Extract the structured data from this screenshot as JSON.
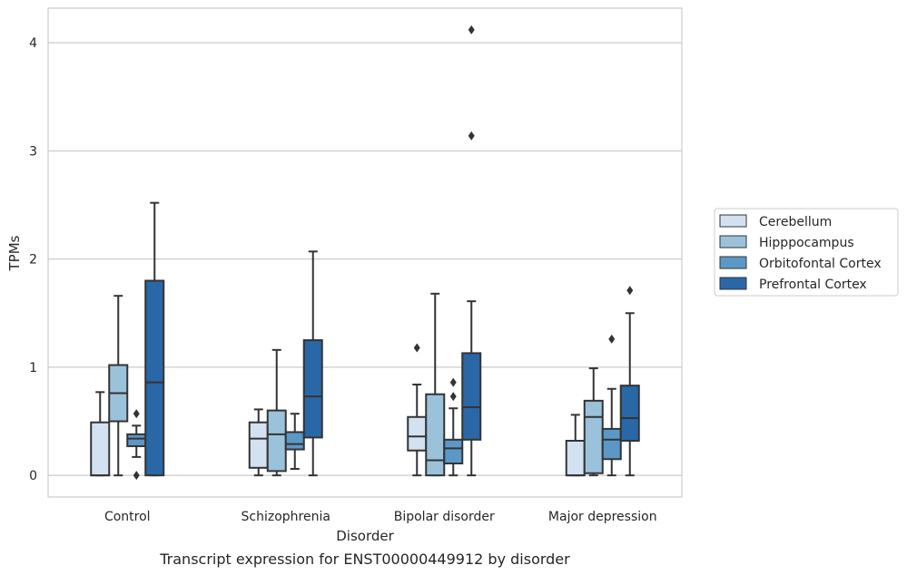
{
  "chart_data": {
    "type": "boxplot",
    "title": "",
    "caption": "Transcript expression for ENST00000449912 by disorder",
    "xlabel": "Disorder",
    "ylabel": "TPMs",
    "ylim": [
      -0.2,
      4.32
    ],
    "yticks": [
      0,
      1,
      2,
      3,
      4
    ],
    "grid": "horizontal",
    "legend_position": "right",
    "categories": [
      "Control",
      "Schizophrenia",
      "Bipolar disorder",
      "Major depression"
    ],
    "series": [
      {
        "name": "Cerebellum",
        "color": "#d3e2f1",
        "boxes": [
          {
            "whislo": 0.0,
            "q1": 0.0,
            "med": 0.0,
            "q3": 0.49,
            "whishi": 0.77,
            "fliers": []
          },
          {
            "whislo": 0.0,
            "q1": 0.07,
            "med": 0.34,
            "q3": 0.49,
            "whishi": 0.61,
            "fliers": []
          },
          {
            "whislo": 0.0,
            "q1": 0.23,
            "med": 0.36,
            "q3": 0.54,
            "whishi": 0.84,
            "fliers": [
              1.18
            ]
          },
          {
            "whislo": 0.0,
            "q1": 0.0,
            "med": 0.0,
            "q3": 0.32,
            "whishi": 0.56,
            "fliers": []
          }
        ]
      },
      {
        "name": "Hipppocampus",
        "color": "#9bc2db",
        "boxes": [
          {
            "whislo": 0.0,
            "q1": 0.5,
            "med": 0.76,
            "q3": 1.02,
            "whishi": 1.66,
            "fliers": []
          },
          {
            "whislo": 0.0,
            "q1": 0.04,
            "med": 0.38,
            "q3": 0.6,
            "whishi": 1.16,
            "fliers": []
          },
          {
            "whislo": 0.0,
            "q1": 0.0,
            "med": 0.14,
            "q3": 0.75,
            "whishi": 1.68,
            "fliers": []
          },
          {
            "whislo": 0.0,
            "q1": 0.02,
            "med": 0.54,
            "q3": 0.69,
            "whishi": 0.99,
            "fliers": []
          }
        ]
      },
      {
        "name": "Orbitofontal Cortex",
        "color": "#5b98c7",
        "boxes": [
          {
            "whislo": 0.17,
            "q1": 0.27,
            "med": 0.34,
            "q3": 0.38,
            "whishi": 0.46,
            "fliers": [
              0.57,
              0.0
            ]
          },
          {
            "whislo": 0.06,
            "q1": 0.24,
            "med": 0.29,
            "q3": 0.4,
            "whishi": 0.57,
            "fliers": []
          },
          {
            "whislo": 0.0,
            "q1": 0.11,
            "med": 0.25,
            "q3": 0.33,
            "whishi": 0.62,
            "fliers": [
              0.73,
              0.86
            ]
          },
          {
            "whislo": 0.0,
            "q1": 0.15,
            "med": 0.33,
            "q3": 0.43,
            "whishi": 0.8,
            "fliers": [
              1.26
            ]
          }
        ]
      },
      {
        "name": "Prefrontal Cortex",
        "color": "#2a67a6",
        "boxes": [
          {
            "whislo": 0.0,
            "q1": 0.0,
            "med": 0.86,
            "q3": 1.8,
            "whishi": 2.52,
            "fliers": []
          },
          {
            "whislo": 0.0,
            "q1": 0.35,
            "med": 0.73,
            "q3": 1.25,
            "whishi": 2.07,
            "fliers": []
          },
          {
            "whislo": 0.0,
            "q1": 0.33,
            "med": 0.63,
            "q3": 1.13,
            "whishi": 1.61,
            "fliers": [
              3.14,
              4.12
            ]
          },
          {
            "whislo": 0.0,
            "q1": 0.32,
            "med": 0.53,
            "q3": 0.83,
            "whishi": 1.5,
            "fliers": [
              1.71
            ]
          }
        ]
      }
    ]
  }
}
